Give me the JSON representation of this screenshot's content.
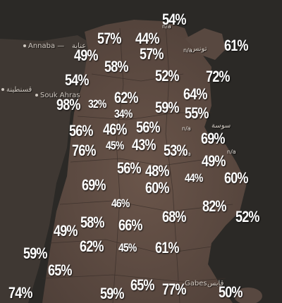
{
  "cities": {
    "annaba": "Annaba —",
    "annaba_ar": "عنابة",
    "constantine_ar": "قسنطينة",
    "souk_ahras": "Souk Ahras",
    "tunis_ar": "تونس",
    "sousse_ar": "سوسة",
    "gabes": "Gabes",
    "gabes_ar": "قابس"
  },
  "no_data_label": "n/a",
  "regions": [
    "54%",
    "57%",
    "44%",
    "61%",
    "49%",
    "57%",
    "58%",
    "54%",
    "52%",
    "72%",
    "98%",
    "32%",
    "62%",
    "64%",
    "34%",
    "59%",
    "55%",
    "56%",
    "46%",
    "56%",
    "69%",
    "76%",
    "45%",
    "43%",
    "53%",
    "49%",
    "56%",
    "48%",
    "60%",
    "69%",
    "60%",
    "44%",
    "46%",
    "82%",
    "52%",
    "49%",
    "58%",
    "66%",
    "68%",
    "62%",
    "45%",
    "61%",
    "59%",
    "65%",
    "74%",
    "59%",
    "65%",
    "77%",
    "50%"
  ],
  "colors": {
    "sea": "#2b2926",
    "land": "#5a4a42",
    "land_light": "#6e5a4e",
    "label": "#ffffff"
  }
}
